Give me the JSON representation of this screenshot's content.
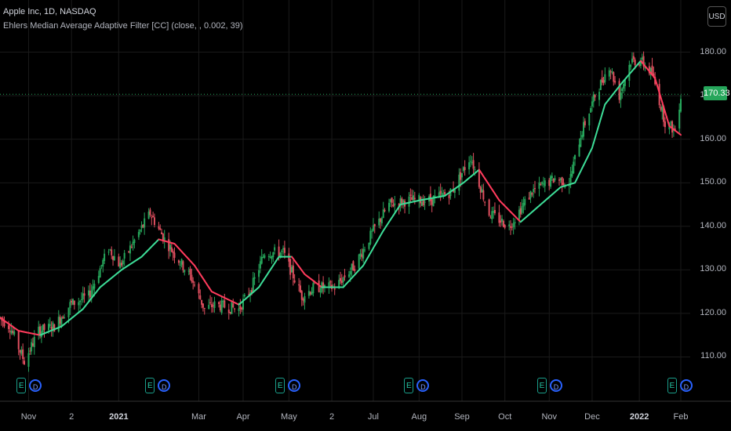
{
  "header": {
    "title": "Apple Inc, 1D, NASDAQ",
    "indicator": "Ehlers Median Average Adaptive Filter [CC] (close, , 0.002, 39)"
  },
  "currency": "USD",
  "last_price": "170.33",
  "colors": {
    "up": "#26a65b",
    "down": "#e04f5f",
    "filter_up": "#3ddc97",
    "filter_down": "#ff3b5c",
    "grid": "#1a1a1a",
    "bg": "#000000"
  },
  "events": {
    "earnings_label": "E",
    "dividend_label": "D",
    "markers": [
      {
        "date": "2020-10-29"
      },
      {
        "date": "2021-01-27"
      },
      {
        "date": "2021-04-28"
      },
      {
        "date": "2021-07-27"
      },
      {
        "date": "2021-10-28"
      },
      {
        "date": "2022-01-27"
      }
    ]
  },
  "chart_data": {
    "type": "candlestick",
    "title": "Apple Inc, 1D, NASDAQ",
    "xlabel": "",
    "ylabel": "",
    "ylim": [
      100,
      190
    ],
    "y_ticks": [
      "110.00",
      "120.00",
      "130.00",
      "140.00",
      "150.00",
      "160.00",
      "170.00",
      "180.00"
    ],
    "x_ticks": [
      {
        "label": "Nov",
        "date": "2020-11-02"
      },
      {
        "label": "2",
        "date": "2020-12-02"
      },
      {
        "label": "2021",
        "date": "2021-01-04",
        "bold": true
      },
      {
        "label": "Mar",
        "date": "2021-03-01"
      },
      {
        "label": "Apr",
        "date": "2021-04-01"
      },
      {
        "label": "May",
        "date": "2021-05-03"
      },
      {
        "label": "2",
        "date": "2021-06-02"
      },
      {
        "label": "Jul",
        "date": "2021-07-01"
      },
      {
        "label": "Aug",
        "date": "2021-08-02"
      },
      {
        "label": "Sep",
        "date": "2021-09-01"
      },
      {
        "label": "Oct",
        "date": "2021-10-01"
      },
      {
        "label": "Nov",
        "date": "2021-11-01"
      },
      {
        "label": "Dec",
        "date": "2021-12-01"
      },
      {
        "label": "2022",
        "date": "2022-01-03",
        "bold": true
      },
      {
        "label": "Feb",
        "date": "2022-02-01"
      }
    ],
    "date_range": [
      "2020-10-13",
      "2022-02-01"
    ],
    "price_anchors": [
      [
        "2020-10-13",
        119
      ],
      [
        "2020-10-20",
        117
      ],
      [
        "2020-10-30",
        109
      ],
      [
        "2020-11-09",
        116
      ],
      [
        "2020-11-20",
        117
      ],
      [
        "2020-12-01",
        122
      ],
      [
        "2020-12-14",
        124
      ],
      [
        "2020-12-28",
        135
      ],
      [
        "2021-01-05",
        131
      ],
      [
        "2021-01-26",
        143
      ],
      [
        "2021-02-05",
        137
      ],
      [
        "2021-02-24",
        128
      ],
      [
        "2021-03-05",
        121
      ],
      [
        "2021-03-12",
        122
      ],
      [
        "2021-03-29",
        121
      ],
      [
        "2021-04-07",
        126
      ],
      [
        "2021-04-16",
        134
      ],
      [
        "2021-04-29",
        134
      ],
      [
        "2021-05-12",
        124
      ],
      [
        "2021-05-21",
        126
      ],
      [
        "2021-06-04",
        126
      ],
      [
        "2021-06-18",
        131
      ],
      [
        "2021-07-01",
        139
      ],
      [
        "2021-07-12",
        145
      ],
      [
        "2021-07-26",
        146
      ],
      [
        "2021-08-10",
        146
      ],
      [
        "2021-08-25",
        148
      ],
      [
        "2021-09-07",
        156
      ],
      [
        "2021-09-20",
        143
      ],
      [
        "2021-10-04",
        140
      ],
      [
        "2021-10-20",
        148
      ],
      [
        "2021-11-05",
        151
      ],
      [
        "2021-11-15",
        150
      ],
      [
        "2021-11-23",
        161
      ],
      [
        "2021-12-03",
        170
      ],
      [
        "2021-12-13",
        177
      ],
      [
        "2021-12-20",
        170
      ],
      [
        "2021-12-28",
        178
      ],
      [
        "2022-01-04",
        178
      ],
      [
        "2022-01-12",
        175
      ],
      [
        "2022-01-21",
        164
      ],
      [
        "2022-01-28",
        162
      ],
      [
        "2022-02-01",
        170
      ]
    ],
    "series": [
      {
        "name": "Apple Inc, 1D, NASDAQ"
      },
      {
        "name": "Ehlers Median Average Adaptive Filter [CC]"
      }
    ],
    "filter_anchors": [
      [
        "2020-10-13",
        119
      ],
      [
        "2020-10-26",
        116
      ],
      [
        "2020-11-10",
        115
      ],
      [
        "2020-11-25",
        117
      ],
      [
        "2020-12-10",
        121
      ],
      [
        "2020-12-22",
        126
      ],
      [
        "2021-01-06",
        130
      ],
      [
        "2021-01-20",
        133
      ],
      [
        "2021-02-01",
        137
      ],
      [
        "2021-02-12",
        136
      ],
      [
        "2021-02-26",
        131
      ],
      [
        "2021-03-10",
        125
      ],
      [
        "2021-03-29",
        122
      ],
      [
        "2021-04-12",
        126
      ],
      [
        "2021-04-26",
        133
      ],
      [
        "2021-05-05",
        133
      ],
      [
        "2021-05-14",
        129
      ],
      [
        "2021-05-26",
        126
      ],
      [
        "2021-06-10",
        126
      ],
      [
        "2021-06-24",
        131
      ],
      [
        "2021-07-08",
        139
      ],
      [
        "2021-07-20",
        145
      ],
      [
        "2021-08-03",
        146
      ],
      [
        "2021-08-20",
        147
      ],
      [
        "2021-09-02",
        150
      ],
      [
        "2021-09-13",
        153
      ],
      [
        "2021-09-27",
        146
      ],
      [
        "2021-10-12",
        141
      ],
      [
        "2021-10-26",
        145
      ],
      [
        "2021-11-09",
        149
      ],
      [
        "2021-11-19",
        150
      ],
      [
        "2021-12-01",
        158
      ],
      [
        "2021-12-10",
        168
      ],
      [
        "2021-12-22",
        173
      ],
      [
        "2022-01-04",
        178
      ],
      [
        "2022-01-14",
        174
      ],
      [
        "2022-01-24",
        163
      ],
      [
        "2022-02-01",
        161
      ]
    ]
  }
}
